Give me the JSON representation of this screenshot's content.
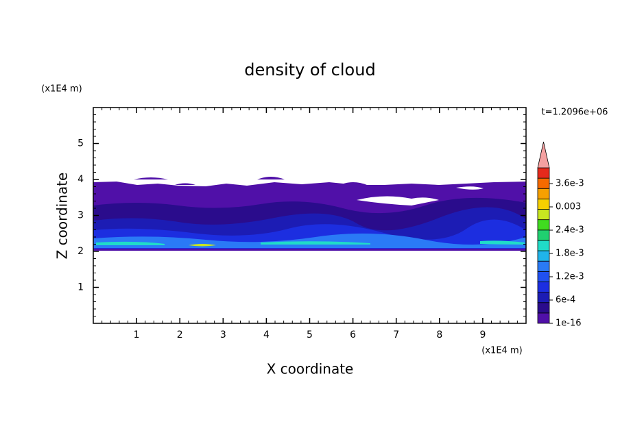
{
  "chart_data": {
    "type": "contour",
    "title": "density of cloud",
    "x_label": "X coordinate",
    "y_label": "Z coordinate",
    "x_unit": "(x1E4 m)",
    "y_unit": "(x1E4 m)",
    "annotation": "t=1.2096e+06",
    "xlim": [
      0,
      10
    ],
    "xticks": [
      1,
      2,
      3,
      4,
      5,
      6,
      7,
      8,
      9
    ],
    "ylim": [
      0,
      6
    ],
    "yticks": [
      1,
      2,
      3,
      4,
      5
    ],
    "minor_tick_step": 0.2,
    "colorbar": {
      "labels": [
        "1e-16",
        "6e-4",
        "1.2e-3",
        "1.8e-3",
        "2.4e-3",
        "0.003",
        "3.6e-3"
      ],
      "colors": [
        "#5010a8",
        "#2a0c8c",
        "#1c1cb4",
        "#1c2ee0",
        "#2050f0",
        "#2a7af6",
        "#20b4ea",
        "#20dcc8",
        "#20d070",
        "#40dc20",
        "#c8e620",
        "#f6d000",
        "#f6a000",
        "#f66a00",
        "#e62a1c"
      ],
      "extend_color": "#f4a0a0"
    }
  }
}
